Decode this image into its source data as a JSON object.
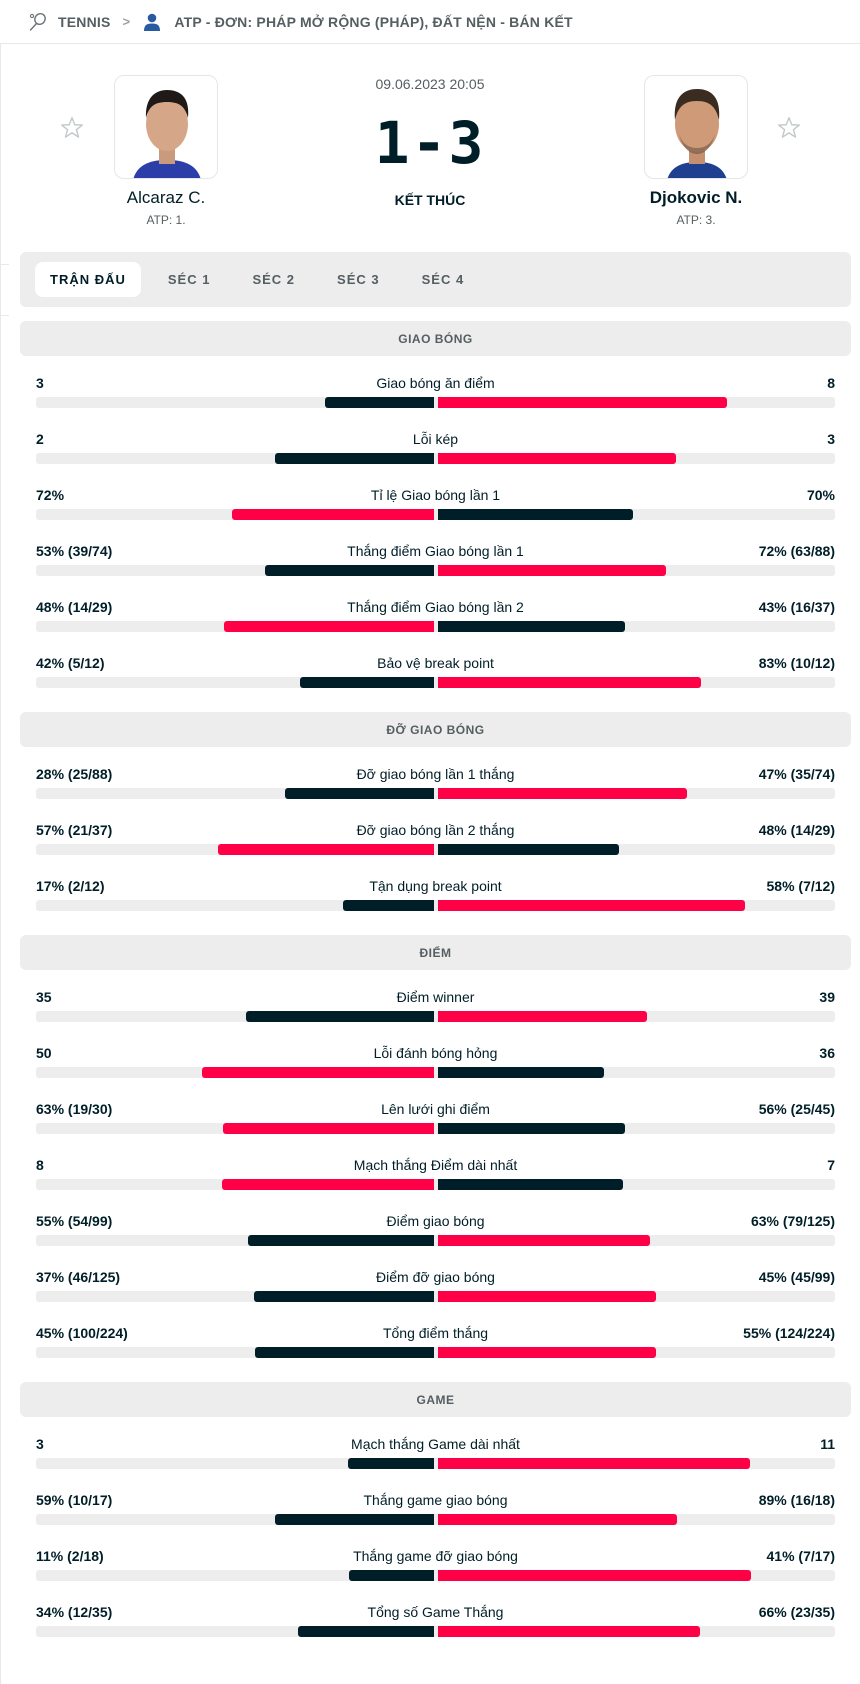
{
  "breadcrumb": {
    "sport": "TENNIS",
    "separator": ">",
    "competition": "ATP - ĐƠN: PHÁP MỞ RỘNG (PHÁP), ĐẤT NỆN - BÁN KẾT",
    "sport_icon": "tennis-racket-icon",
    "competition_icon": "person-icon"
  },
  "match": {
    "datetime": "09.06.2023 20:05",
    "score": "1-3",
    "status": "KẾT THÚC",
    "home": {
      "name": "Alcaraz C.",
      "rank": "ATP: 1."
    },
    "away": {
      "name": "Djokovic N.",
      "rank": "ATP: 3."
    }
  },
  "colors": {
    "dark": "#001e28",
    "accent": "#ff0046",
    "track": "#ededed"
  },
  "tabs": [
    {
      "label": "TRẬN ĐẤU",
      "active": true
    },
    {
      "label": "SÉC 1",
      "active": false
    },
    {
      "label": "SÉC 2",
      "active": false
    },
    {
      "label": "SÉC 3",
      "active": false
    },
    {
      "label": "SÉC 4",
      "active": false
    }
  ],
  "sections": [
    {
      "title": "GIAO BÓNG",
      "rows": [
        {
          "label": "Giao bóng ăn điểm",
          "home": "3",
          "away": "8",
          "home_val": 3,
          "away_val": 8
        },
        {
          "label": "Lỗi kép",
          "home": "2",
          "away": "3",
          "home_val": 2,
          "away_val": 3
        },
        {
          "label": "Tỉ lệ Giao bóng lần 1",
          "home": "72%",
          "away": "70%",
          "home_val": 72,
          "away_val": 70
        },
        {
          "label": "Thắng điểm Giao bóng lần 1",
          "home": "53% (39/74)",
          "away": "72% (63/88)",
          "home_val": 53,
          "away_val": 72
        },
        {
          "label": "Thắng điểm Giao bóng lần 2",
          "home": "48% (14/29)",
          "away": "43% (16/37)",
          "home_val": 48,
          "away_val": 43
        },
        {
          "label": "Bảo vệ break point",
          "home": "42% (5/12)",
          "away": "83% (10/12)",
          "home_val": 42,
          "away_val": 83
        }
      ]
    },
    {
      "title": "ĐỠ GIAO BÓNG",
      "rows": [
        {
          "label": "Đỡ giao bóng lần 1 thắng",
          "home": "28% (25/88)",
          "away": "47% (35/74)",
          "home_val": 28,
          "away_val": 47
        },
        {
          "label": "Đỡ giao bóng lần 2 thắng",
          "home": "57% (21/37)",
          "away": "48% (14/29)",
          "home_val": 57,
          "away_val": 48
        },
        {
          "label": "Tận dụng break point",
          "home": "17% (2/12)",
          "away": "58% (7/12)",
          "home_val": 17,
          "away_val": 58
        }
      ]
    },
    {
      "title": "ĐIỂM",
      "rows": [
        {
          "label": "Điểm winner",
          "home": "35",
          "away": "39",
          "home_val": 35,
          "away_val": 39
        },
        {
          "label": "Lỗi đánh bóng hỏng",
          "home": "50",
          "away": "36",
          "home_val": 50,
          "away_val": 36
        },
        {
          "label": "Lên lưới ghi điểm",
          "home": "63% (19/30)",
          "away": "56% (25/45)",
          "home_val": 63,
          "away_val": 56
        },
        {
          "label": "Mạch thắng Điểm dài nhất",
          "home": "8",
          "away": "7",
          "home_val": 8,
          "away_val": 7
        },
        {
          "label": "Điểm giao bóng",
          "home": "55% (54/99)",
          "away": "63% (79/125)",
          "home_val": 55,
          "away_val": 63
        },
        {
          "label": "Điểm đỡ giao bóng",
          "home": "37% (46/125)",
          "away": "45% (45/99)",
          "home_val": 37,
          "away_val": 45
        },
        {
          "label": "Tổng điểm thắng",
          "home": "45% (100/224)",
          "away": "55% (124/224)",
          "home_val": 45,
          "away_val": 55
        }
      ]
    },
    {
      "title": "GAME",
      "rows": [
        {
          "label": "Mạch thắng Game dài nhất",
          "home": "3",
          "away": "11",
          "home_val": 3,
          "away_val": 11
        },
        {
          "label": "Thắng game giao bóng",
          "home": "59% (10/17)",
          "away": "89% (16/18)",
          "home_val": 59,
          "away_val": 89
        },
        {
          "label": "Thắng game đỡ giao bóng",
          "home": "11% (2/18)",
          "away": "41% (7/17)",
          "home_val": 11,
          "away_val": 41
        },
        {
          "label": "Tổng số Game Thắng",
          "home": "34% (12/35)",
          "away": "66% (23/35)",
          "home_val": 34,
          "away_val": 66
        }
      ]
    }
  ]
}
